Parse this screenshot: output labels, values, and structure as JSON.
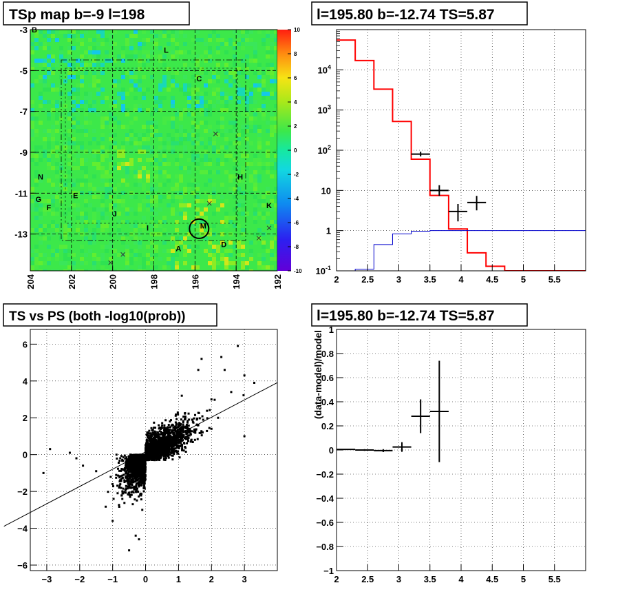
{
  "colors": {
    "frame": "#000000",
    "model_line": "#ff0000",
    "background_line": "#0000cc",
    "data_marker": "#000000",
    "map_base": "#3ce84a"
  },
  "chart_data": [
    {
      "type": "heatmap",
      "title": "TSp map b=-9 l=198",
      "x_ticks": [
        "204",
        "202",
        "200",
        "198",
        "196",
        "194",
        "192"
      ],
      "y_ticks": [
        "-3",
        "-5",
        "-7",
        "-9",
        "-11",
        "-13"
      ],
      "xlim": [
        204.0,
        192.0
      ],
      "ylim": [
        -14.8,
        -3.0
      ],
      "grid": true,
      "colorbar": {
        "range": [
          -10,
          10
        ],
        "ticks": [
          "10",
          "8",
          "6",
          "4",
          "2",
          "0",
          "-2",
          "-4",
          "-6",
          "-8",
          "-10"
        ]
      },
      "source_labels": [
        {
          "text": "B",
          "l": 203.8,
          "b": -3.0
        },
        {
          "text": "L",
          "l": 197.4,
          "b": -4.0
        },
        {
          "text": "C",
          "l": 195.8,
          "b": -5.4
        },
        {
          "text": "N",
          "l": 203.5,
          "b": -10.2
        },
        {
          "text": "H",
          "l": 193.8,
          "b": -10.2
        },
        {
          "text": "G",
          "l": 203.6,
          "b": -11.3
        },
        {
          "text": "E",
          "l": 201.8,
          "b": -11.1
        },
        {
          "text": "F",
          "l": 203.1,
          "b": -11.7
        },
        {
          "text": "K",
          "l": 192.4,
          "b": -11.6
        },
        {
          "text": "J",
          "l": 199.9,
          "b": -12.0
        },
        {
          "text": "M",
          "l": 195.6,
          "b": -12.6
        },
        {
          "text": "I",
          "l": 198.3,
          "b": -12.7
        },
        {
          "text": "D",
          "l": 194.6,
          "b": -13.5
        },
        {
          "text": "A",
          "l": 196.8,
          "b": -13.7
        }
      ],
      "cross_markers": [
        {
          "l": 195.0,
          "b": -8.1
        },
        {
          "l": 195.3,
          "b": -11.5
        },
        {
          "l": 192.4,
          "b": -12.7
        },
        {
          "l": 192.9,
          "b": -13.2
        },
        {
          "l": 199.5,
          "b": -14.0
        },
        {
          "l": 200.1,
          "b": -14.4
        }
      ],
      "selected_source": {
        "l": 195.8,
        "b": -12.74
      }
    },
    {
      "type": "line",
      "title": "l=195.80 b=-12.74 TS=5.87",
      "xlim": [
        2,
        6
      ],
      "ylim": [
        0.1,
        100000
      ],
      "y_scale": "log",
      "grid": true,
      "x_ticks": [
        "2",
        "2.5",
        "3",
        "3.5",
        "4",
        "4.5",
        "5",
        "5.5"
      ],
      "y_ticks": [
        "10^-1",
        "1",
        "10",
        "10^2",
        "10^3",
        "10^4"
      ],
      "series": [
        {
          "role": "model",
          "color": "#ff0000",
          "bin_edges": [
            2.0,
            2.3,
            2.6,
            2.9,
            3.2,
            3.5,
            3.8,
            4.1,
            4.4,
            4.7,
            5.0,
            5.3,
            5.6,
            6.0
          ],
          "values": [
            55000,
            17000,
            3300,
            520,
            60,
            7.5,
            1.1,
            0.28,
            0.13,
            0.1,
            0.1,
            0.1,
            0.1
          ]
        },
        {
          "role": "background",
          "color": "#0000cc",
          "bin_edges": [
            2.0,
            2.3,
            2.6,
            2.9,
            3.2,
            3.5,
            3.8,
            4.1,
            4.4,
            4.7,
            5.0,
            5.3,
            5.6,
            6.0
          ],
          "values": [
            0.1,
            0.11,
            0.45,
            0.83,
            0.97,
            1.0,
            1.0,
            1.0,
            1.0,
            1.0,
            1.0,
            1.0,
            1.0
          ]
        },
        {
          "role": "data",
          "color": "#000000",
          "points": [
            {
              "x": 3.35,
              "y": 80,
              "xerr": 0.15,
              "ylo": 70,
              "yhi": 92
            },
            {
              "x": 3.65,
              "y": 10,
              "xerr": 0.15,
              "ylo": 7.3,
              "yhi": 13.5
            },
            {
              "x": 3.95,
              "y": 3,
              "xerr": 0.15,
              "ylo": 1.7,
              "yhi": 4.6
            },
            {
              "x": 4.25,
              "y": 5,
              "xerr": 0.15,
              "ylo": 3.2,
              "yhi": 7.3
            }
          ]
        }
      ]
    },
    {
      "type": "scatter",
      "title": "TS vs PS (both -log10(prob))",
      "xlim": [
        -3.5,
        4.0
      ],
      "ylim": [
        -6.3,
        6.8
      ],
      "grid": true,
      "x_ticks": [
        "−3",
        "−2",
        "−1",
        "0",
        "1",
        "2",
        "3"
      ],
      "y_ticks": [
        "−6",
        "−4",
        "−2",
        "0",
        "2",
        "4",
        "6"
      ],
      "fit_line": {
        "slope": 0.94,
        "intercept": 0.15
      },
      "cloud": {
        "n_points": 2600,
        "positive": {
          "sx": 0.62,
          "sy": 0.75,
          "corr": 0.8
        },
        "negative": {
          "sx": 0.32,
          "sy": 0.9,
          "corr": 0.55
        }
      },
      "points": [
        [
          2.8,
          5.9
        ],
        [
          2.3,
          5.3
        ],
        [
          1.6,
          4.6
        ],
        [
          1.7,
          5.2
        ],
        [
          2.4,
          4.6
        ],
        [
          3.3,
          3.9
        ],
        [
          3.0,
          4.3
        ],
        [
          2.6,
          3.4
        ],
        [
          3.0,
          1.0
        ],
        [
          2.0,
          1.4
        ],
        [
          -2.9,
          0.3
        ],
        [
          -3.1,
          -1.0
        ],
        [
          -2.1,
          -0.2
        ],
        [
          -1.5,
          -0.9
        ],
        [
          -1.0,
          -3.6
        ],
        [
          -0.5,
          -5.2
        ],
        [
          -0.3,
          -4.4
        ],
        [
          -0.1,
          -3.0
        ],
        [
          0.8,
          0.3
        ],
        [
          1.5,
          0.8
        ],
        [
          2.2,
          2.0
        ],
        [
          -1.9,
          -0.6
        ],
        [
          -2.3,
          0.1
        ],
        [
          1.1,
          3.2
        ],
        [
          2.0,
          3.0
        ],
        [
          -0.7,
          -2.1
        ],
        [
          -0.2,
          -4.6
        ]
      ]
    },
    {
      "type": "scatter",
      "title": "l=195.80 b=-12.74 TS=5.87",
      "ylabel": "(data-model)/model",
      "xlim": [
        2,
        6
      ],
      "ylim": [
        -1,
        1
      ],
      "grid": true,
      "x_ticks": [
        "2",
        "2.5",
        "3",
        "3.5",
        "4",
        "4.5",
        "5",
        "5.5"
      ],
      "y_ticks": [
        "−1",
        "−0.8",
        "−0.6",
        "−0.4",
        "−0.2",
        "0",
        "0.2",
        "0.4",
        "0.6",
        "0.8",
        "1"
      ],
      "points": [
        {
          "x": 2.15,
          "y": 0.005,
          "xerr": 0.15,
          "yerr": 0.005
        },
        {
          "x": 2.45,
          "y": 0.0,
          "xerr": 0.15,
          "yerr": 0.007
        },
        {
          "x": 2.75,
          "y": -0.005,
          "xerr": 0.15,
          "yerr": 0.012
        },
        {
          "x": 3.05,
          "y": 0.025,
          "xerr": 0.15,
          "yerr": 0.04
        },
        {
          "x": 3.35,
          "y": 0.28,
          "xerr": 0.15,
          "yerr": 0.14
        },
        {
          "x": 3.65,
          "y": 0.32,
          "xerr": 0.15,
          "yerr": 0.42
        }
      ]
    }
  ]
}
